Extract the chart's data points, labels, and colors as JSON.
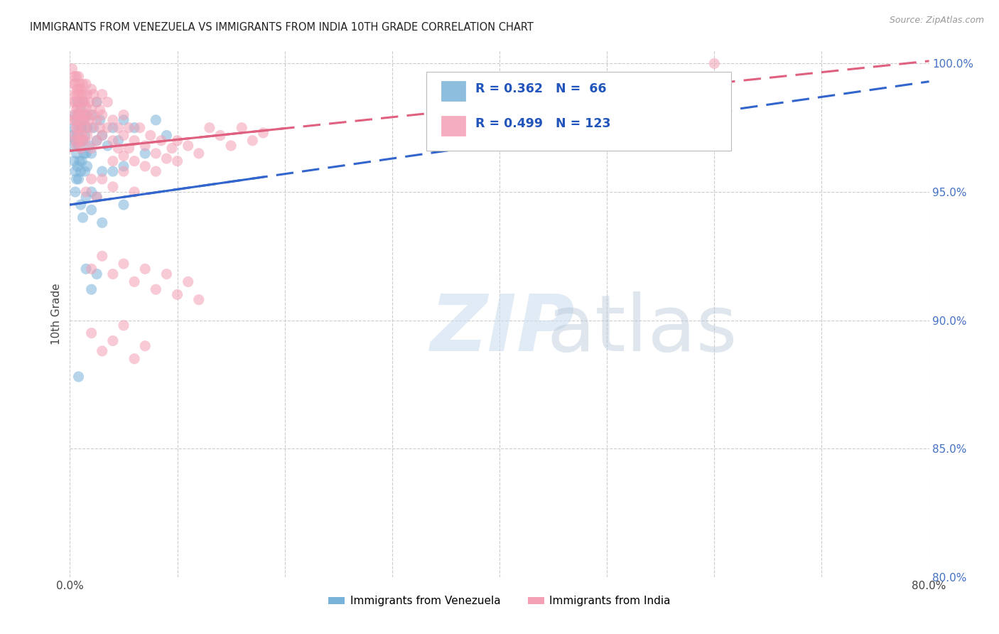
{
  "title": "IMMIGRANTS FROM VENEZUELA VS IMMIGRANTS FROM INDIA 10TH GRADE CORRELATION CHART",
  "source": "Source: ZipAtlas.com",
  "ylabel": "10th Grade",
  "xlim": [
    0.0,
    0.8
  ],
  "ylim": [
    0.8,
    1.005
  ],
  "xticks": [
    0.0,
    0.1,
    0.2,
    0.3,
    0.4,
    0.5,
    0.6,
    0.7,
    0.8
  ],
  "yticks": [
    0.8,
    0.85,
    0.9,
    0.95,
    1.0
  ],
  "venezuela_color": "#7ab3d9",
  "india_color": "#f4a0b5",
  "venezuela_line_color": "#3366cc",
  "india_line_color": "#e06080",
  "R_venezuela": 0.362,
  "N_venezuela": 66,
  "R_india": 0.499,
  "N_india": 123,
  "legend_label_venezuela": "Immigrants from Venezuela",
  "legend_label_india": "Immigrants from India",
  "watermark_zip": "ZIP",
  "watermark_atlas": "atlas",
  "title_color": "#222222",
  "right_tick_color": "#4472c4",
  "grid_color": "#cccccc",
  "venezuela_points": [
    [
      0.002,
      0.972
    ],
    [
      0.003,
      0.968
    ],
    [
      0.004,
      0.975
    ],
    [
      0.004,
      0.962
    ],
    [
      0.005,
      0.98
    ],
    [
      0.005,
      0.97
    ],
    [
      0.005,
      0.958
    ],
    [
      0.005,
      0.95
    ],
    [
      0.006,
      0.978
    ],
    [
      0.006,
      0.965
    ],
    [
      0.006,
      0.955
    ],
    [
      0.007,
      0.985
    ],
    [
      0.007,
      0.972
    ],
    [
      0.007,
      0.96
    ],
    [
      0.008,
      0.98
    ],
    [
      0.008,
      0.968
    ],
    [
      0.008,
      0.955
    ],
    [
      0.009,
      0.975
    ],
    [
      0.009,
      0.962
    ],
    [
      0.01,
      0.983
    ],
    [
      0.01,
      0.97
    ],
    [
      0.01,
      0.958
    ],
    [
      0.01,
      0.945
    ],
    [
      0.011,
      0.975
    ],
    [
      0.011,
      0.962
    ],
    [
      0.012,
      0.985
    ],
    [
      0.012,
      0.97
    ],
    [
      0.013,
      0.978
    ],
    [
      0.013,
      0.965
    ],
    [
      0.014,
      0.972
    ],
    [
      0.014,
      0.958
    ],
    [
      0.015,
      0.98
    ],
    [
      0.015,
      0.965
    ],
    [
      0.016,
      0.975
    ],
    [
      0.016,
      0.96
    ],
    [
      0.018,
      0.968
    ],
    [
      0.02,
      0.98
    ],
    [
      0.02,
      0.965
    ],
    [
      0.02,
      0.95
    ],
    [
      0.022,
      0.975
    ],
    [
      0.025,
      0.985
    ],
    [
      0.025,
      0.97
    ],
    [
      0.028,
      0.978
    ],
    [
      0.03,
      0.972
    ],
    [
      0.03,
      0.958
    ],
    [
      0.035,
      0.968
    ],
    [
      0.04,
      0.975
    ],
    [
      0.04,
      0.958
    ],
    [
      0.045,
      0.97
    ],
    [
      0.05,
      0.978
    ],
    [
      0.05,
      0.96
    ],
    [
      0.06,
      0.975
    ],
    [
      0.07,
      0.965
    ],
    [
      0.08,
      0.978
    ],
    [
      0.09,
      0.972
    ],
    [
      0.012,
      0.94
    ],
    [
      0.015,
      0.948
    ],
    [
      0.02,
      0.943
    ],
    [
      0.025,
      0.948
    ],
    [
      0.03,
      0.938
    ],
    [
      0.05,
      0.945
    ],
    [
      0.015,
      0.92
    ],
    [
      0.02,
      0.912
    ],
    [
      0.025,
      0.918
    ],
    [
      0.008,
      0.878
    ]
  ],
  "india_points": [
    [
      0.002,
      0.998
    ],
    [
      0.003,
      0.992
    ],
    [
      0.003,
      0.985
    ],
    [
      0.003,
      0.978
    ],
    [
      0.004,
      0.995
    ],
    [
      0.004,
      0.988
    ],
    [
      0.004,
      0.98
    ],
    [
      0.004,
      0.972
    ],
    [
      0.005,
      0.992
    ],
    [
      0.005,
      0.985
    ],
    [
      0.005,
      0.978
    ],
    [
      0.005,
      0.97
    ],
    [
      0.006,
      0.995
    ],
    [
      0.006,
      0.988
    ],
    [
      0.006,
      0.982
    ],
    [
      0.006,
      0.975
    ],
    [
      0.006,
      0.968
    ],
    [
      0.007,
      0.99
    ],
    [
      0.007,
      0.983
    ],
    [
      0.007,
      0.975
    ],
    [
      0.008,
      0.995
    ],
    [
      0.008,
      0.988
    ],
    [
      0.008,
      0.98
    ],
    [
      0.008,
      0.972
    ],
    [
      0.009,
      0.992
    ],
    [
      0.009,
      0.985
    ],
    [
      0.009,
      0.978
    ],
    [
      0.009,
      0.97
    ],
    [
      0.01,
      0.99
    ],
    [
      0.01,
      0.982
    ],
    [
      0.01,
      0.975
    ],
    [
      0.01,
      0.967
    ],
    [
      0.011,
      0.988
    ],
    [
      0.011,
      0.98
    ],
    [
      0.011,
      0.972
    ],
    [
      0.012,
      0.992
    ],
    [
      0.012,
      0.985
    ],
    [
      0.012,
      0.978
    ],
    [
      0.012,
      0.97
    ],
    [
      0.013,
      0.988
    ],
    [
      0.013,
      0.98
    ],
    [
      0.014,
      0.985
    ],
    [
      0.014,
      0.978
    ],
    [
      0.014,
      0.97
    ],
    [
      0.015,
      0.992
    ],
    [
      0.015,
      0.983
    ],
    [
      0.015,
      0.975
    ],
    [
      0.016,
      0.988
    ],
    [
      0.016,
      0.98
    ],
    [
      0.016,
      0.972
    ],
    [
      0.018,
      0.985
    ],
    [
      0.018,
      0.978
    ],
    [
      0.02,
      0.99
    ],
    [
      0.02,
      0.982
    ],
    [
      0.02,
      0.975
    ],
    [
      0.02,
      0.967
    ],
    [
      0.022,
      0.988
    ],
    [
      0.022,
      0.98
    ],
    [
      0.025,
      0.985
    ],
    [
      0.025,
      0.978
    ],
    [
      0.025,
      0.97
    ],
    [
      0.028,
      0.982
    ],
    [
      0.028,
      0.975
    ],
    [
      0.03,
      0.988
    ],
    [
      0.03,
      0.98
    ],
    [
      0.03,
      0.972
    ],
    [
      0.035,
      0.985
    ],
    [
      0.035,
      0.975
    ],
    [
      0.04,
      0.978
    ],
    [
      0.04,
      0.97
    ],
    [
      0.04,
      0.962
    ],
    [
      0.045,
      0.975
    ],
    [
      0.045,
      0.967
    ],
    [
      0.05,
      0.98
    ],
    [
      0.05,
      0.972
    ],
    [
      0.05,
      0.964
    ],
    [
      0.055,
      0.975
    ],
    [
      0.055,
      0.967
    ],
    [
      0.06,
      0.97
    ],
    [
      0.06,
      0.962
    ],
    [
      0.065,
      0.975
    ],
    [
      0.07,
      0.968
    ],
    [
      0.07,
      0.96
    ],
    [
      0.075,
      0.972
    ],
    [
      0.08,
      0.965
    ],
    [
      0.08,
      0.958
    ],
    [
      0.085,
      0.97
    ],
    [
      0.09,
      0.963
    ],
    [
      0.095,
      0.967
    ],
    [
      0.1,
      0.97
    ],
    [
      0.1,
      0.962
    ],
    [
      0.11,
      0.968
    ],
    [
      0.12,
      0.965
    ],
    [
      0.13,
      0.975
    ],
    [
      0.14,
      0.972
    ],
    [
      0.15,
      0.968
    ],
    [
      0.16,
      0.975
    ],
    [
      0.17,
      0.97
    ],
    [
      0.18,
      0.973
    ],
    [
      0.015,
      0.95
    ],
    [
      0.02,
      0.955
    ],
    [
      0.025,
      0.948
    ],
    [
      0.03,
      0.955
    ],
    [
      0.04,
      0.952
    ],
    [
      0.05,
      0.958
    ],
    [
      0.06,
      0.95
    ],
    [
      0.02,
      0.92
    ],
    [
      0.03,
      0.925
    ],
    [
      0.04,
      0.918
    ],
    [
      0.05,
      0.922
    ],
    [
      0.06,
      0.915
    ],
    [
      0.07,
      0.92
    ],
    [
      0.08,
      0.912
    ],
    [
      0.09,
      0.918
    ],
    [
      0.1,
      0.91
    ],
    [
      0.11,
      0.915
    ],
    [
      0.12,
      0.908
    ],
    [
      0.02,
      0.895
    ],
    [
      0.03,
      0.888
    ],
    [
      0.04,
      0.892
    ],
    [
      0.05,
      0.898
    ],
    [
      0.06,
      0.885
    ],
    [
      0.07,
      0.89
    ],
    [
      0.6,
      1.0
    ]
  ]
}
